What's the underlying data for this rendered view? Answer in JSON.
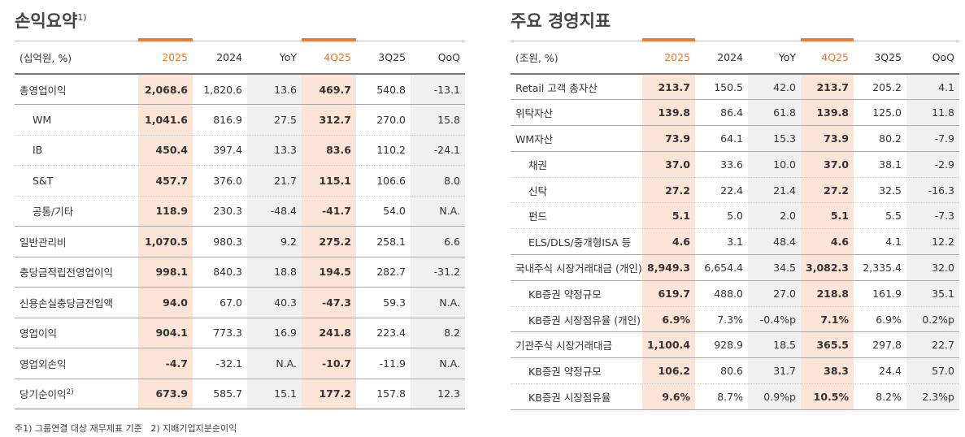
{
  "left": {
    "title": "손익요약",
    "title_note": "1)",
    "unit": "(십억원, %)",
    "columns": [
      "2025",
      "2024",
      "YoY",
      "4Q25",
      "3Q25",
      "QoQ"
    ],
    "rows": [
      {
        "label": "총영업이익",
        "values": [
          "2,068.6",
          "1,820.6",
          "13.6",
          "469.7",
          "540.8",
          "-13.1"
        ]
      },
      {
        "label": "WM",
        "indent": true,
        "values": [
          "1,041.6",
          "816.9",
          "27.5",
          "312.7",
          "270.0",
          "15.8"
        ]
      },
      {
        "label": "IB",
        "indent": true,
        "values": [
          "450.4",
          "397.4",
          "13.3",
          "83.6",
          "110.2",
          "-24.1"
        ]
      },
      {
        "label": "S&T",
        "indent": true,
        "values": [
          "457.7",
          "376.0",
          "21.7",
          "115.1",
          "106.6",
          "8.0"
        ]
      },
      {
        "label": "공통/기타",
        "indent": true,
        "values": [
          "118.9",
          "230.3",
          "-48.4",
          "-41.7",
          "54.0",
          "N.A."
        ]
      },
      {
        "label": "일반관리비",
        "values": [
          "1,070.5",
          "980.3",
          "9.2",
          "275.2",
          "258.1",
          "6.6"
        ]
      },
      {
        "label": "충당금적립전영업이익",
        "values": [
          "998.1",
          "840.3",
          "18.8",
          "194.5",
          "282.7",
          "-31.2"
        ]
      },
      {
        "label": "신용손실충당금전입액",
        "values": [
          "94.0",
          "67.0",
          "40.3",
          "-47.3",
          "59.3",
          "N.A."
        ]
      },
      {
        "label": "영업이익",
        "values": [
          "904.1",
          "773.3",
          "16.9",
          "241.8",
          "223.4",
          "8.2"
        ]
      },
      {
        "label": "영업외손익",
        "values": [
          "-4.7",
          "-32.1",
          "N.A.",
          "-10.7",
          "-11.9",
          "N.A."
        ]
      },
      {
        "label": "당기순이익",
        "note": "2)",
        "values": [
          "673.9",
          "585.7",
          "15.1",
          "177.2",
          "157.8",
          "12.3"
        ]
      }
    ],
    "footnote": "주1) 그룹연결 대상 재무제표 기준   2) 지배기업지분순이익"
  },
  "right": {
    "title": "주요 경영지표",
    "unit": "(조원, %)",
    "columns": [
      "2025",
      "2024",
      "YoY",
      "4Q25",
      "3Q25",
      "QoQ"
    ],
    "rows": [
      {
        "label": "Retail 고객 총자산",
        "values": [
          "213.7",
          "150.5",
          "42.0",
          "213.7",
          "205.2",
          "4.1"
        ]
      },
      {
        "label": "위탁자산",
        "values": [
          "139.8",
          "86.4",
          "61.8",
          "139.8",
          "125.0",
          "11.8"
        ]
      },
      {
        "label": "WM자산",
        "values": [
          "73.9",
          "64.1",
          "15.3",
          "73.9",
          "80.2",
          "-7.9"
        ]
      },
      {
        "label": "채권",
        "indent": true,
        "values": [
          "37.0",
          "33.6",
          "10.0",
          "37.0",
          "38.1",
          "-2.9"
        ]
      },
      {
        "label": "신탁",
        "indent": true,
        "values": [
          "27.2",
          "22.4",
          "21.4",
          "27.2",
          "32.5",
          "-16.3"
        ]
      },
      {
        "label": "펀드",
        "indent": true,
        "values": [
          "5.1",
          "5.0",
          "2.0",
          "5.1",
          "5.5",
          "-7.3"
        ]
      },
      {
        "label": "ELS/DLS/중개형ISA 등",
        "indent": true,
        "values": [
          "4.6",
          "3.1",
          "48.4",
          "4.6",
          "4.1",
          "12.2"
        ]
      },
      {
        "label": "국내주식 시장거래대금 (개인)",
        "values": [
          "8,949.3",
          "6,654.4",
          "34.5",
          "3,082.3",
          "2,335.4",
          "32.0"
        ]
      },
      {
        "label": "KB증권 약정규모",
        "indent": true,
        "values": [
          "619.7",
          "488.0",
          "27.0",
          "218.8",
          "161.9",
          "35.1"
        ]
      },
      {
        "label": "KB증권 시장점유율 (개인)",
        "indent": true,
        "values": [
          "6.9%",
          "7.3%",
          "-0.4%p",
          "7.1%",
          "6.9%",
          "0.2%p"
        ]
      },
      {
        "label": "기관주식 시장거래대금",
        "values": [
          "1,100.4",
          "928.9",
          "18.5",
          "365.5",
          "297.8",
          "22.7"
        ]
      },
      {
        "label": "KB증권 약정규모",
        "indent": true,
        "values": [
          "106.2",
          "80.6",
          "31.7",
          "38.3",
          "24.4",
          "57.0"
        ]
      },
      {
        "label": "KB증권 시장점유율",
        "indent": true,
        "values": [
          "9.6%",
          "8.7%",
          "0.9%p",
          "10.5%",
          "8.2%",
          "2.3%p"
        ]
      }
    ]
  }
}
